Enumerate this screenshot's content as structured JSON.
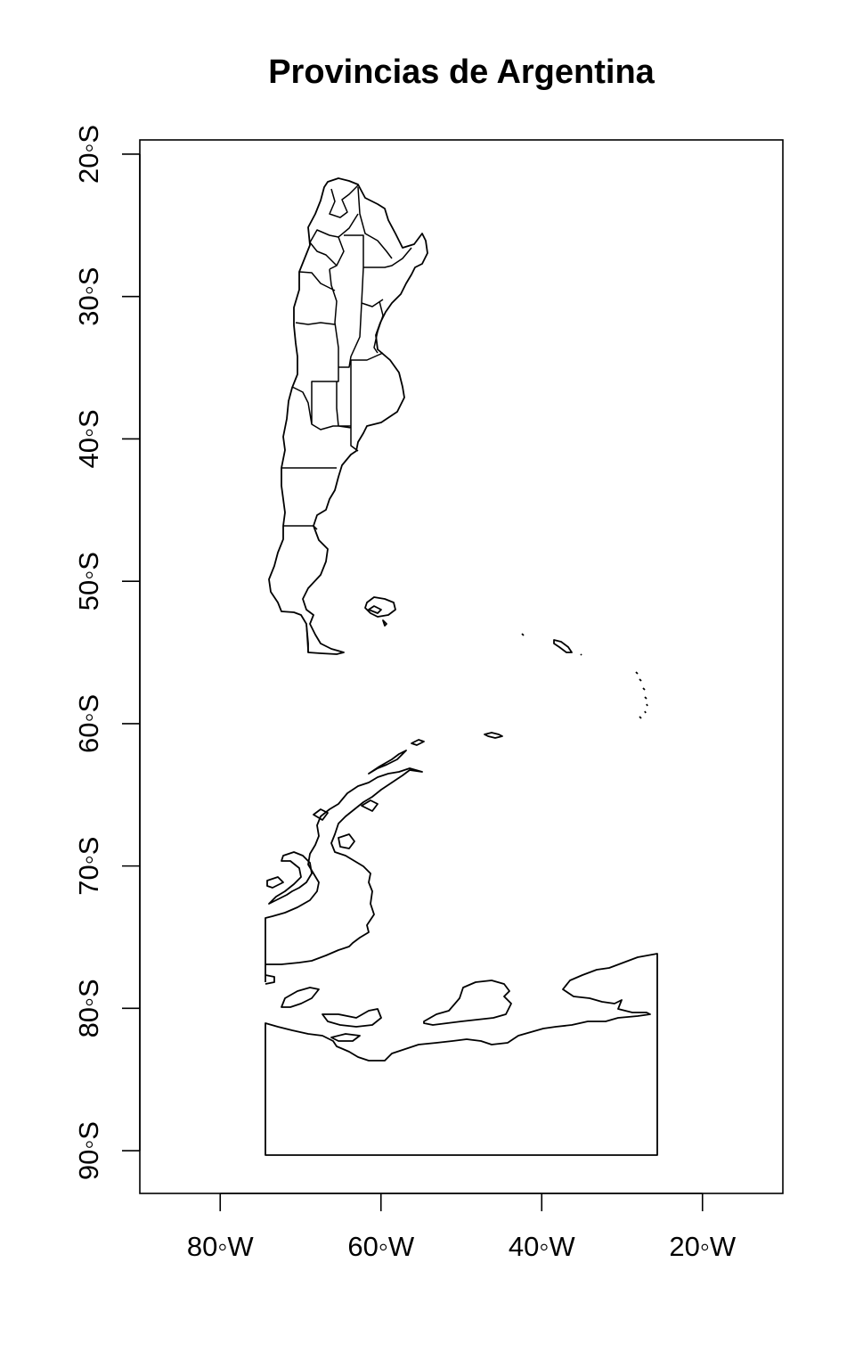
{
  "title": "Provincias de Argentina",
  "x_axis": {
    "range": [
      -90,
      -10
    ],
    "ticks": [
      {
        "value": -80,
        "label": "80◦W"
      },
      {
        "value": -60,
        "label": "60◦W"
      },
      {
        "value": -40,
        "label": "40◦W"
      },
      {
        "value": -20,
        "label": "20◦W"
      }
    ]
  },
  "y_axis": {
    "range": [
      -93,
      -19
    ],
    "ticks": [
      {
        "value": -20,
        "label": "20◦S"
      },
      {
        "value": -30,
        "label": "30◦S"
      },
      {
        "value": -40,
        "label": "40◦S"
      },
      {
        "value": -50,
        "label": "50◦S"
      },
      {
        "value": -60,
        "label": "60◦S"
      },
      {
        "value": -70,
        "label": "70◦S"
      },
      {
        "value": -80,
        "label": "80◦S"
      },
      {
        "value": -90,
        "label": "90◦S"
      }
    ]
  },
  "colors": {
    "stroke": "#000000",
    "fill": "#ffffff"
  }
}
